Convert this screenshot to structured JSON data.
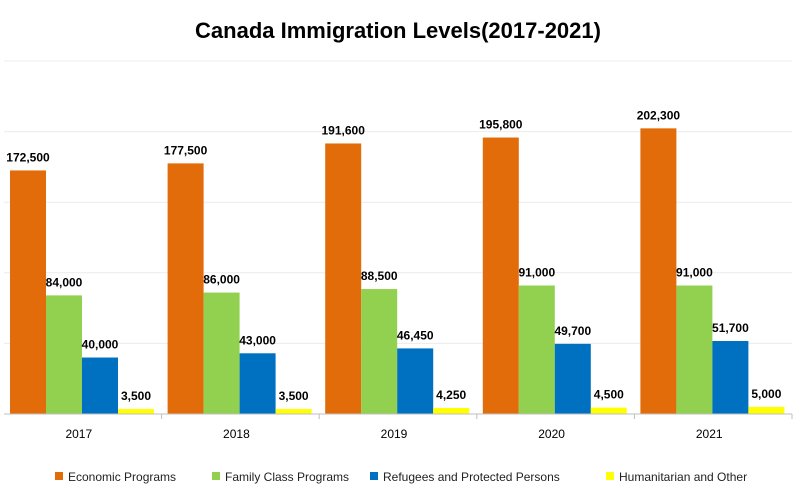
{
  "chart_data": {
    "type": "bar",
    "title": "Canada Immigration Levels(2017-2021)",
    "xlabel": "",
    "ylabel": "",
    "categories": [
      "2017",
      "2018",
      "2019",
      "2020",
      "2021"
    ],
    "series": [
      {
        "name": "Economic Programs",
        "color": "#E36C0A",
        "values": [
          172500,
          177500,
          191600,
          195800,
          202300
        ],
        "labels": [
          "172,500",
          "177,500",
          "191,600",
          "195,800",
          "202,300"
        ]
      },
      {
        "name": "Family Class Programs",
        "color": "#92D050",
        "values": [
          84000,
          86000,
          88500,
          91000,
          91000
        ],
        "labels": [
          "84,000",
          "86,000",
          "88,500",
          "91,000",
          "91,000"
        ]
      },
      {
        "name": "Refugees and Protected Persons",
        "color": "#0070C0",
        "values": [
          40000,
          43000,
          46450,
          49700,
          51700
        ],
        "labels": [
          "40,000",
          "43,000",
          "46,450",
          "49,700",
          "51,700"
        ]
      },
      {
        "name": "Humanitarian and Other",
        "color": "#FFFF00",
        "values": [
          3500,
          3500,
          4250,
          4500,
          5000
        ],
        "labels": [
          "3,500",
          "3,500",
          "4,250",
          "4,500",
          "5,000"
        ]
      }
    ],
    "ylim": [
      0,
      250000
    ],
    "grid": true,
    "legend_position": "bottom"
  }
}
